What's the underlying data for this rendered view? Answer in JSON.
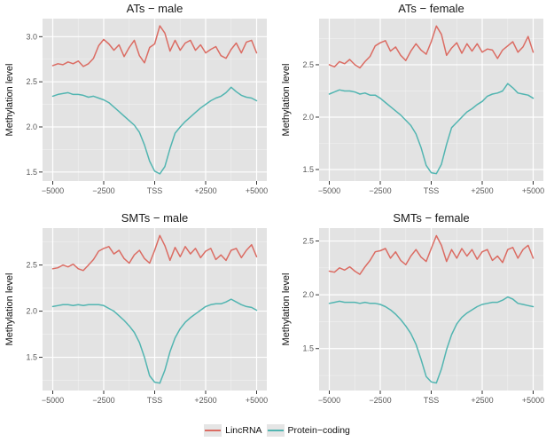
{
  "figure": {
    "background": "#FFFFFF"
  },
  "styles": {
    "plot_bg": "#E3E3E3",
    "grid_major": "#FFFFFF",
    "grid_minor": "#FFFFFF",
    "axis_text_color": "#595959",
    "tick_mark_color": "#333333",
    "title_color": "#1A1A1A",
    "axis_label_color": "#111111",
    "lincrna_color": "#DB6C63",
    "protein_color": "#52B5B1"
  },
  "legend": {
    "items": [
      {
        "label": "LincRNA",
        "color": "#DB6C63"
      },
      {
        "label": "Protein−coding",
        "color": "#52B5B1"
      }
    ]
  },
  "chart_data": [
    {
      "type": "line",
      "title": "ATs − male",
      "ylabel": "Methylation level",
      "xlim": [
        -5500,
        5500
      ],
      "ylim": [
        1.4,
        3.2
      ],
      "x_ticks": [
        {
          "v": -5000,
          "label": "−5000"
        },
        {
          "v": -2500,
          "label": "−2500"
        },
        {
          "v": 0,
          "label": "TSS"
        },
        {
          "v": 2500,
          "label": "+2500"
        },
        {
          "v": 5000,
          "label": "+5000"
        }
      ],
      "y_ticks": [
        1.5,
        2.0,
        2.5,
        3.0
      ],
      "x_start": -5000,
      "x_step": 250,
      "grid": true,
      "series": [
        {
          "name": "LincRNA",
          "color": "#DB6C63",
          "values": [
            2.68,
            2.7,
            2.69,
            2.72,
            2.7,
            2.73,
            2.67,
            2.7,
            2.76,
            2.9,
            2.97,
            2.92,
            2.85,
            2.91,
            2.78,
            2.88,
            2.96,
            2.79,
            2.71,
            2.88,
            2.92,
            3.12,
            3.04,
            2.84,
            2.96,
            2.85,
            2.93,
            2.96,
            2.85,
            2.91,
            2.82,
            2.86,
            2.89,
            2.79,
            2.76,
            2.86,
            2.93,
            2.82,
            2.94,
            2.96,
            2.82
          ]
        },
        {
          "name": "Protein−coding",
          "color": "#52B5B1",
          "values": [
            2.34,
            2.36,
            2.37,
            2.38,
            2.36,
            2.36,
            2.35,
            2.33,
            2.34,
            2.32,
            2.3,
            2.27,
            2.22,
            2.17,
            2.12,
            2.07,
            2.02,
            1.94,
            1.8,
            1.62,
            1.51,
            1.48,
            1.56,
            1.76,
            1.93,
            2.0,
            2.06,
            2.11,
            2.16,
            2.21,
            2.25,
            2.29,
            2.32,
            2.34,
            2.38,
            2.44,
            2.39,
            2.35,
            2.33,
            2.32,
            2.29
          ]
        }
      ]
    },
    {
      "type": "line",
      "title": "ATs − female",
      "ylabel": "Methylation level",
      "xlim": [
        -5500,
        5500
      ],
      "ylim": [
        1.39,
        2.94
      ],
      "x_ticks": [
        {
          "v": -5000,
          "label": "−5000"
        },
        {
          "v": -2500,
          "label": "−2500"
        },
        {
          "v": 0,
          "label": "TSS"
        },
        {
          "v": 2500,
          "label": "+2500"
        },
        {
          "v": 5000,
          "label": "+5000"
        }
      ],
      "y_ticks": [
        1.5,
        2.0,
        2.5
      ],
      "x_start": -5000,
      "x_step": 250,
      "grid": true,
      "series": [
        {
          "name": "LincRNA",
          "color": "#DB6C63",
          "values": [
            2.5,
            2.48,
            2.53,
            2.51,
            2.55,
            2.5,
            2.47,
            2.53,
            2.58,
            2.68,
            2.71,
            2.73,
            2.63,
            2.67,
            2.59,
            2.54,
            2.63,
            2.7,
            2.64,
            2.6,
            2.72,
            2.87,
            2.79,
            2.59,
            2.66,
            2.71,
            2.61,
            2.7,
            2.63,
            2.7,
            2.62,
            2.65,
            2.64,
            2.56,
            2.64,
            2.68,
            2.72,
            2.62,
            2.67,
            2.77,
            2.62
          ]
        },
        {
          "name": "Protein−coding",
          "color": "#52B5B1",
          "values": [
            2.22,
            2.24,
            2.26,
            2.25,
            2.25,
            2.24,
            2.22,
            2.23,
            2.21,
            2.21,
            2.18,
            2.14,
            2.1,
            2.06,
            2.02,
            1.97,
            1.92,
            1.84,
            1.71,
            1.54,
            1.47,
            1.46,
            1.55,
            1.74,
            1.9,
            1.95,
            2.0,
            2.05,
            2.08,
            2.12,
            2.15,
            2.2,
            2.22,
            2.23,
            2.25,
            2.32,
            2.28,
            2.23,
            2.22,
            2.21,
            2.18
          ]
        }
      ]
    },
    {
      "type": "line",
      "title": "SMTs − male",
      "ylabel": "Methylation level",
      "xlim": [
        -5500,
        5500
      ],
      "ylim": [
        1.14,
        2.9
      ],
      "x_ticks": [
        {
          "v": -5000,
          "label": "−5000"
        },
        {
          "v": -2500,
          "label": "−2500"
        },
        {
          "v": 0,
          "label": "TSS"
        },
        {
          "v": 2500,
          "label": "+2500"
        },
        {
          "v": 5000,
          "label": "+5000"
        }
      ],
      "y_ticks": [
        1.5,
        2.0,
        2.5
      ],
      "x_start": -5000,
      "x_step": 250,
      "grid": true,
      "series": [
        {
          "name": "LincRNA",
          "color": "#DB6C63",
          "values": [
            2.46,
            2.47,
            2.5,
            2.48,
            2.51,
            2.46,
            2.44,
            2.5,
            2.56,
            2.65,
            2.68,
            2.7,
            2.62,
            2.66,
            2.57,
            2.52,
            2.61,
            2.66,
            2.57,
            2.52,
            2.66,
            2.82,
            2.71,
            2.55,
            2.69,
            2.59,
            2.7,
            2.62,
            2.68,
            2.58,
            2.65,
            2.68,
            2.56,
            2.61,
            2.55,
            2.66,
            2.68,
            2.58,
            2.66,
            2.72,
            2.59
          ]
        },
        {
          "name": "Protein−coding",
          "color": "#52B5B1",
          "values": [
            2.05,
            2.06,
            2.07,
            2.07,
            2.06,
            2.07,
            2.06,
            2.07,
            2.07,
            2.07,
            2.06,
            2.03,
            2.0,
            1.95,
            1.9,
            1.84,
            1.77,
            1.66,
            1.5,
            1.3,
            1.23,
            1.22,
            1.36,
            1.56,
            1.71,
            1.81,
            1.88,
            1.93,
            1.97,
            2.01,
            2.05,
            2.07,
            2.08,
            2.08,
            2.1,
            2.13,
            2.1,
            2.07,
            2.05,
            2.04,
            2.01
          ]
        }
      ]
    },
    {
      "type": "line",
      "title": "SMTs − female",
      "ylabel": "Methylation level",
      "xlim": [
        -5500,
        5500
      ],
      "ylim": [
        1.11,
        2.62
      ],
      "x_ticks": [
        {
          "v": -5000,
          "label": "−5000"
        },
        {
          "v": -2500,
          "label": "−2500"
        },
        {
          "v": 0,
          "label": "TSS"
        },
        {
          "v": 2500,
          "label": "+2500"
        },
        {
          "v": 5000,
          "label": "+5000"
        }
      ],
      "y_ticks": [
        1.5,
        2.0,
        2.5
      ],
      "x_start": -5000,
      "x_step": 250,
      "grid": true,
      "series": [
        {
          "name": "LincRNA",
          "color": "#DB6C63",
          "values": [
            2.22,
            2.21,
            2.25,
            2.23,
            2.26,
            2.22,
            2.19,
            2.26,
            2.32,
            2.4,
            2.41,
            2.43,
            2.34,
            2.4,
            2.32,
            2.28,
            2.36,
            2.42,
            2.35,
            2.31,
            2.43,
            2.55,
            2.46,
            2.31,
            2.42,
            2.34,
            2.43,
            2.36,
            2.42,
            2.33,
            2.4,
            2.42,
            2.32,
            2.36,
            2.3,
            2.42,
            2.44,
            2.34,
            2.42,
            2.46,
            2.34
          ]
        },
        {
          "name": "Protein−coding",
          "color": "#52B5B1",
          "values": [
            1.92,
            1.93,
            1.94,
            1.93,
            1.93,
            1.93,
            1.92,
            1.93,
            1.92,
            1.92,
            1.91,
            1.89,
            1.86,
            1.82,
            1.77,
            1.71,
            1.64,
            1.54,
            1.4,
            1.24,
            1.19,
            1.18,
            1.31,
            1.49,
            1.63,
            1.73,
            1.79,
            1.83,
            1.86,
            1.89,
            1.91,
            1.92,
            1.93,
            1.93,
            1.95,
            1.98,
            1.96,
            1.92,
            1.91,
            1.9,
            1.89
          ]
        }
      ]
    }
  ]
}
